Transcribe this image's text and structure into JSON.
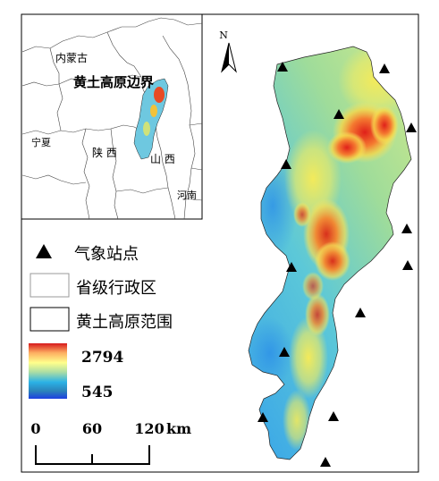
{
  "north_arrow": {
    "label": "N"
  },
  "inset": {
    "labels": {
      "inner_mongolia": "内蒙古",
      "loess_boundary": "黄土高原边界",
      "ningxia": "宁夏",
      "shaanxi": "陕 西",
      "shanxi": "山 西",
      "henan": "河南"
    }
  },
  "legend": {
    "stations": "气象站点",
    "province": "省级行政区",
    "plateau_extent": "黄土高原范围",
    "elev_max": "2794",
    "elev_min": "545",
    "ramp_colors": [
      "#d7191c",
      "#fdae61",
      "#ffff8c",
      "#abdda4",
      "#2bb2e6",
      "#2b83ba",
      "#1d3fe0"
    ]
  },
  "scale_bar": {
    "t0": "0",
    "t1": "60",
    "t2": "120",
    "unit": "km"
  }
}
